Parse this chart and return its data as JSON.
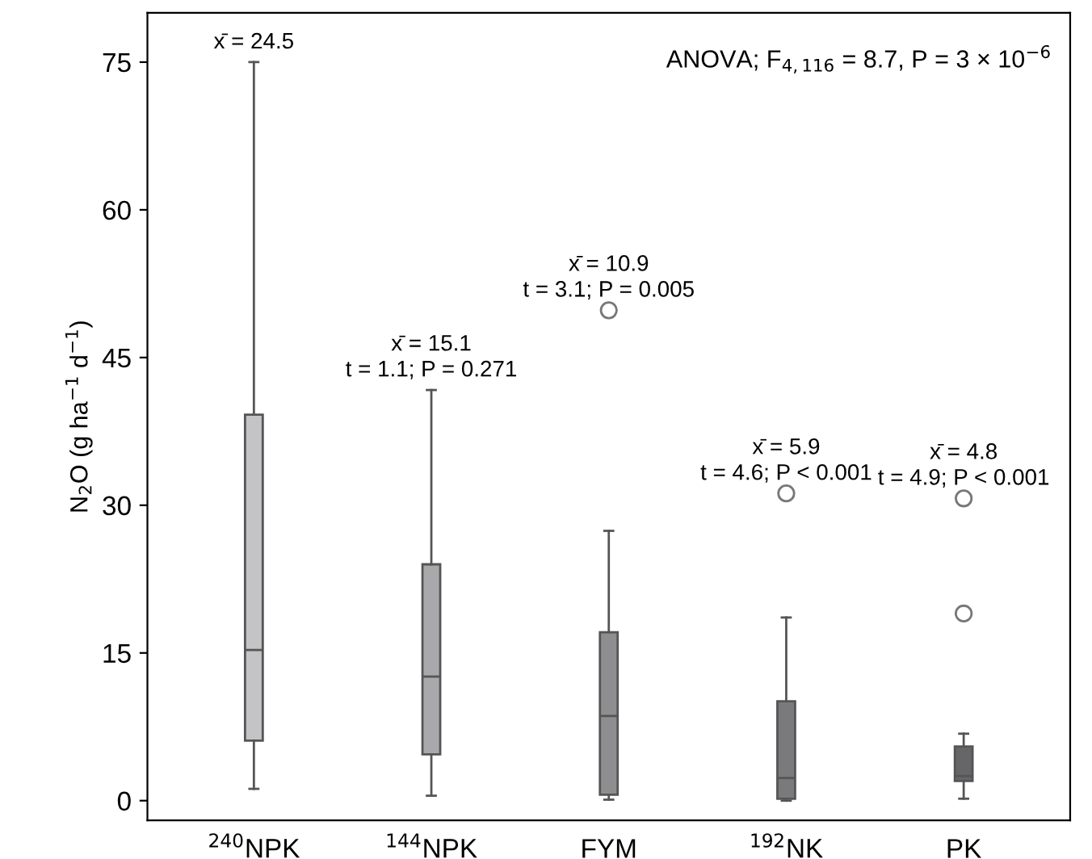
{
  "chart_data": {
    "type": "box",
    "ylabel": "N$_{2}$O (g ha$^{−1}$ d$^{−1}$)",
    "categories": [
      "$^{240}$NPK",
      "$^{144}$NPK",
      "FYM",
      "$^{192}$NK",
      "PK"
    ],
    "colors": [
      "#c4c4c6",
      "#a9a9ab",
      "#8e8e90",
      "#7a7a7c",
      "#666668"
    ],
    "boxes": [
      {
        "low": 1.2,
        "q1": 6.1,
        "median": 15.3,
        "q3": 39.2,
        "high": 75
      },
      {
        "low": 0.5,
        "q1": 4.7,
        "median": 12.6,
        "q3": 24.0,
        "high": 41.7
      },
      {
        "low": 0.1,
        "q1": 0.6,
        "median": 8.6,
        "q3": 17.1,
        "high": 27.4,
        "outliers": [
          49.8
        ]
      },
      {
        "low": 0,
        "q1": 0.2,
        "median": 2.3,
        "q3": 10.1,
        "high": 18.6,
        "outliers": [
          31.2
        ]
      },
      {
        "low": 0.2,
        "q1": 2.0,
        "median": 2.5,
        "q3": 5.5,
        "high": 6.8,
        "outliers": [
          19.0,
          30.7
        ]
      }
    ],
    "ylim": [
      -2,
      80
    ],
    "yticks": [
      0,
      15,
      30,
      45,
      60,
      75
    ],
    "grid": false,
    "annotations": [
      "x̄ = 24.5",
      "x̄ = 15.1\nt = 1.1; P = 0.271",
      "x̄ = 10.9\nt = 3.1; P = 0.005",
      "x̄ = 5.9\nt = 4.6; P < 0.001",
      "x̄ = 4.8\nt = 4.9; P < 0.001",
      "ANOVA; F$_{4,116}$ = 8.7, P = 3 × 10$^{−6}$"
    ]
  }
}
